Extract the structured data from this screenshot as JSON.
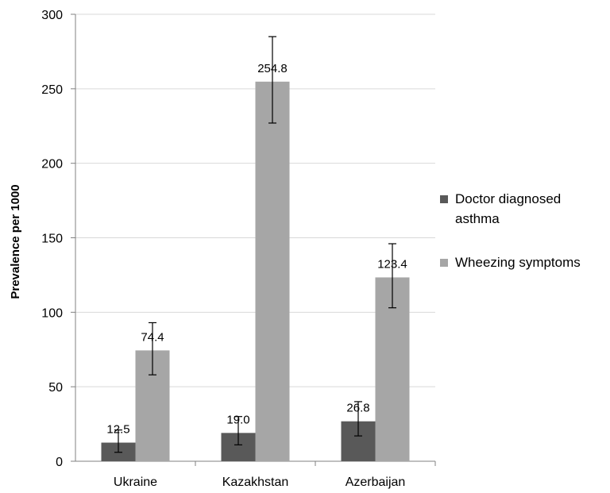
{
  "chart_data": {
    "type": "bar",
    "categories": [
      "Ukraine",
      "Kazakhstan",
      "Azerbaijan"
    ],
    "series": [
      {
        "name": "Doctor diagnosed asthma",
        "values": [
          12.5,
          19.0,
          26.8
        ],
        "labels": [
          "12.5",
          "19.0",
          "26.8"
        ],
        "error_low": [
          6,
          11,
          17
        ],
        "error_high": [
          21,
          30,
          40
        ],
        "color": "#595959"
      },
      {
        "name": "Wheezing symptoms",
        "values": [
          74.4,
          254.8,
          123.4
        ],
        "labels": [
          "74.4",
          "254.8",
          "123.4"
        ],
        "error_low": [
          58,
          227,
          103
        ],
        "error_high": [
          93,
          285,
          146
        ],
        "color": "#a6a6a6"
      }
    ],
    "title": "",
    "xlabel": "",
    "ylabel": "Prevalence per 1000",
    "ylim": [
      0,
      300
    ],
    "yticks": [
      0,
      50,
      100,
      150,
      200,
      250,
      300
    ],
    "grid": true,
    "legend_position": "right"
  }
}
